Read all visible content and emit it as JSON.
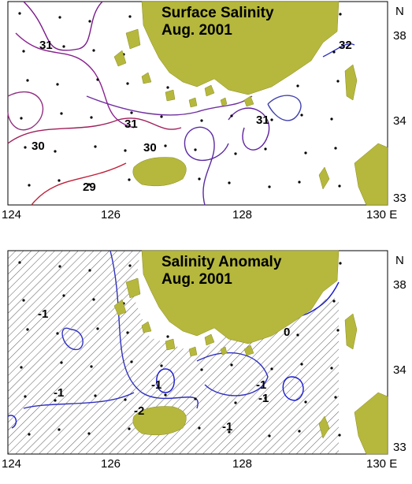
{
  "panels": [
    {
      "title": [
        "Surface Salinity",
        "Aug. 2001"
      ],
      "x_labels": [
        "124",
        "126",
        "128",
        "130 E"
      ],
      "y_labels": [
        "N",
        "38",
        "34",
        "33"
      ],
      "contour_labels": [
        "31",
        "32",
        "31",
        "31",
        "30",
        "30",
        "29"
      ]
    },
    {
      "title": [
        "Salinity Anomaly",
        "Aug. 2001"
      ],
      "x_labels": [
        "124",
        "126",
        "128",
        "130 E"
      ],
      "y_labels": [
        "N",
        "38",
        "34",
        "33"
      ],
      "contour_labels": [
        "-1",
        "0",
        "-1",
        "-1",
        "-1",
        "-2",
        "-1",
        "-1"
      ]
    }
  ]
}
